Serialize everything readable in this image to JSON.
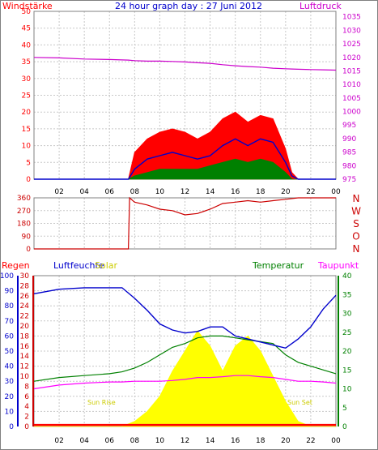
{
  "title": "24 hour graph day : 27 Juni 2012",
  "time_ticks": [
    "02",
    "04",
    "06",
    "08",
    "10",
    "12",
    "14",
    "16",
    "18",
    "20",
    "22",
    "00"
  ],
  "colors": {
    "wind": "#ff0000",
    "gust": "#ff0000",
    "wind_avg": "#0000cc",
    "wind_low": "#008000",
    "pressure": "#cc00cc",
    "direction": "#cc0000",
    "humidity": "#0000cc",
    "temperature": "#008000",
    "dewpoint": "#ff00ff",
    "solar": "#ffff00",
    "rain": "#ff0000",
    "grid": "#c8c8c8",
    "sunlabel": "#cccc00"
  },
  "chart_data": [
    {
      "type": "line",
      "title": "24 hour graph day : 27 Juni 2012",
      "left_axis": {
        "label": "Windstärke",
        "ticks": [
          "0",
          "5",
          "10",
          "15",
          "20",
          "25",
          "30",
          "35",
          "40",
          "45",
          "50"
        ],
        "ylim": [
          0,
          50
        ]
      },
      "right_axis": {
        "label": "Luftdruck",
        "ticks": [
          "975",
          "980",
          "985",
          "990",
          "995",
          "1000",
          "1005",
          "1010",
          "1015",
          "1020",
          "1025",
          "1030",
          "1035"
        ],
        "ylim": [
          975,
          1037
        ]
      },
      "x": [
        0,
        2,
        4,
        6,
        7.5,
        8,
        9,
        10,
        11,
        12,
        13,
        14,
        15,
        16,
        17,
        18,
        19,
        20,
        20.5,
        21,
        22,
        23,
        24
      ],
      "series": [
        {
          "name": "gust",
          "values": [
            0,
            0,
            0,
            0,
            0,
            8,
            12,
            14,
            15,
            14,
            12,
            14,
            18,
            20,
            17,
            19,
            18,
            9,
            2,
            0,
            0,
            0,
            0
          ]
        },
        {
          "name": "wind_avg",
          "values": [
            0,
            0,
            0,
            0,
            0,
            3,
            6,
            7,
            8,
            7,
            6,
            7,
            10,
            12,
            10,
            12,
            11,
            5,
            1,
            0,
            0,
            0,
            0
          ]
        },
        {
          "name": "wind_low",
          "values": [
            0,
            0,
            0,
            0,
            0,
            1,
            2,
            3,
            3,
            3,
            3,
            4,
            5,
            6,
            5,
            6,
            5,
            2,
            0,
            0,
            0,
            0,
            0
          ]
        },
        {
          "name": "pressure",
          "values": [
            1020,
            1019.8,
            1019.4,
            1019.2,
            1019.0,
            1018.8,
            1018.6,
            1018.6,
            1018.5,
            1018.3,
            1018.0,
            1017.8,
            1017.3,
            1016.9,
            1016.6,
            1016.4,
            1016.0,
            1015.8,
            1015.7,
            1015.6,
            1015.5,
            1015.4,
            1015.3
          ]
        }
      ],
      "grid": true
    },
    {
      "type": "line",
      "left_axis": {
        "ticks": [
          "0",
          "90",
          "180",
          "270",
          "360"
        ],
        "ylim": [
          0,
          360
        ]
      },
      "right_labels": [
        "N",
        "W",
        "S",
        "O",
        "N"
      ],
      "x": [
        0,
        7.5,
        7.6,
        8,
        9,
        10,
        11,
        12,
        13,
        14,
        15,
        16,
        17,
        18,
        19,
        20,
        21,
        22,
        23,
        24
      ],
      "series": [
        {
          "name": "direction",
          "values": [
            0,
            0,
            360,
            330,
            310,
            280,
            270,
            240,
            250,
            280,
            320,
            330,
            340,
            330,
            340,
            350,
            360,
            360,
            360,
            360
          ]
        }
      ],
      "grid": true
    },
    {
      "type": "line",
      "legend_labels": [
        "Regen",
        "Luftfeuchte",
        "Solar",
        "Temperatur",
        "Taupunkt"
      ],
      "axis_rain": {
        "ticks": [
          "0",
          "2",
          "4",
          "6",
          "8",
          "10",
          "12",
          "14",
          "16",
          "18",
          "20",
          "22",
          "24",
          "26",
          "28",
          "30"
        ],
        "ylim": [
          0,
          30
        ]
      },
      "axis_humidity": {
        "ticks": [
          "0",
          "10",
          "20",
          "30",
          "40",
          "50",
          "60",
          "70",
          "80",
          "90",
          "100"
        ],
        "ylim": [
          0,
          100
        ]
      },
      "axis_temperature": {
        "ticks": [
          "0",
          "5",
          "10",
          "15",
          "20",
          "25",
          "30",
          "35",
          "40"
        ],
        "ylim": [
          0,
          40
        ]
      },
      "annotations": [
        "Sun Rise",
        "Sun Set"
      ],
      "x": [
        0,
        2,
        4,
        6,
        7,
        8,
        9,
        10,
        11,
        12,
        13,
        14,
        15,
        16,
        17,
        18,
        19,
        20,
        21,
        22,
        23,
        24
      ],
      "series": [
        {
          "name": "humidity",
          "values": [
            88,
            91,
            92,
            92,
            92,
            85,
            77,
            68,
            64,
            62,
            63,
            66,
            66,
            60,
            58,
            56,
            54,
            52,
            58,
            66,
            78,
            87
          ]
        },
        {
          "name": "temperature",
          "values": [
            12,
            13,
            13.5,
            14,
            14.5,
            15.5,
            17,
            19,
            21,
            22,
            23.5,
            24,
            24,
            23.5,
            23,
            22.5,
            22,
            19,
            17,
            16,
            15,
            14
          ]
        },
        {
          "name": "dewpoint",
          "values": [
            10,
            11,
            11.5,
            11.8,
            11.8,
            12,
            12,
            12,
            12.2,
            12.5,
            13,
            13,
            13.2,
            13.5,
            13.5,
            13.2,
            13,
            12.5,
            12,
            12,
            11.8,
            11.5
          ]
        },
        {
          "name": "solar",
          "values": [
            0,
            0,
            0,
            0,
            0,
            1,
            3,
            6,
            11,
            15,
            19,
            16,
            11,
            16,
            18,
            15,
            10,
            5,
            1,
            0,
            0,
            0
          ]
        },
        {
          "name": "rain",
          "values": [
            0.3,
            0.3,
            0.3,
            0.3,
            0.3,
            0.3,
            0.3,
            0.3,
            0.3,
            0.3,
            0.3,
            0.3,
            0.3,
            0.3,
            0.3,
            0.3,
            0.3,
            0.3,
            0.3,
            0.3,
            0.3,
            0.3
          ]
        }
      ],
      "grid": true
    }
  ],
  "labels": {
    "windstaerke": "Windstärke",
    "luftdruck": "Luftdruck",
    "regen": "Regen",
    "luftfeuchte": "Luftfeuchte",
    "solar": "Solar",
    "temperatur": "Temperatur",
    "taupunkt": "Taupunkt",
    "sunrise": "Sun Rise",
    "sunset": "Sun Set"
  }
}
